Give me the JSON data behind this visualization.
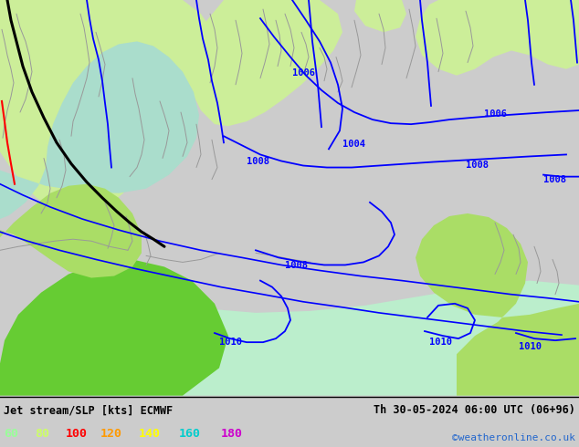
{
  "title_left": "Jet stream/SLP [kts] ECMWF",
  "title_right": "Th 30-05-2024 06:00 UTC (06+96)",
  "credit": "©weatheronline.co.uk",
  "legend_values": [
    "60",
    "80",
    "100",
    "120",
    "140",
    "160",
    "180"
  ],
  "legend_colors": [
    "#99ff99",
    "#ccff66",
    "#ff0000",
    "#ff9900",
    "#ffff00",
    "#00cccc",
    "#cc00cc"
  ],
  "bg_color": "#cccccc",
  "map_bg": "#cccccc",
  "land_green_light": "#ccee99",
  "land_green_medium": "#aadd66",
  "land_green_bright": "#66cc33",
  "sea_color": "#aaddcc",
  "sea_light": "#bbeecc",
  "contour_color": "#0000ff",
  "jet_black_color": "#000000",
  "jet_red_color": "#ff0000",
  "coast_color": "#999999",
  "figsize": [
    6.34,
    4.9
  ],
  "dpi": 100
}
